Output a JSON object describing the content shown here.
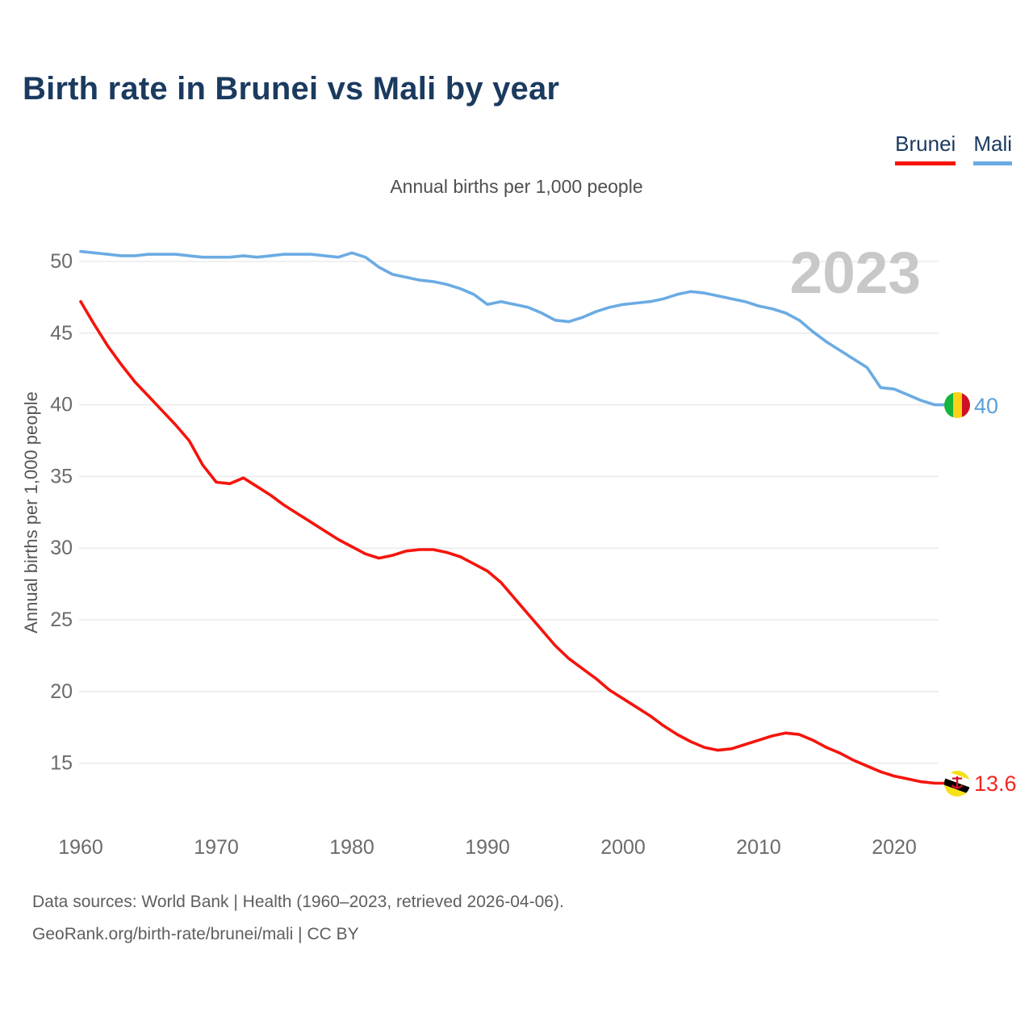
{
  "header": {
    "title": "Birth rate in Brunei vs Mali by year"
  },
  "legend": [
    {
      "label": "Brunei",
      "color": "#f5140c"
    },
    {
      "label": "Mali",
      "color": "#6babe3"
    }
  ],
  "subtitle": "Annual births per 1,000 people",
  "watermark": "2023",
  "end_labels": [
    {
      "series": "Mali",
      "value": "40",
      "color": "#5b9fd8",
      "flag": "mali-flag"
    },
    {
      "series": "Brunei",
      "value": "13.6",
      "color": "#f3261d",
      "flag": "brunei-flag"
    }
  ],
  "flag_colors": {
    "mali": {
      "green": "#14B53A",
      "yellow": "#FCD116",
      "red": "#CE1126"
    },
    "brunei": {
      "yellow": "#F7E017",
      "white": "#ffffff",
      "black": "#000000",
      "red": "#CF1126"
    }
  },
  "footer": {
    "line1": "Data sources: World Bank | Health (1960–2023, retrieved 2026-04-06).",
    "line2": "GeoRank.org/birth-rate/brunei/mali | CC BY"
  },
  "chart_data": {
    "type": "line",
    "title": "Birth rate in Brunei vs Mali by year",
    "subtitle": "Annual births per 1,000 people",
    "xlabel": "",
    "ylabel": "Annual births per 1,000 people",
    "xticks": [
      1960,
      1970,
      1980,
      1990,
      2000,
      2010,
      2020
    ],
    "yticks": [
      15,
      20,
      25,
      30,
      35,
      40,
      45,
      50
    ],
    "ylim": [
      12.5,
      52.5
    ],
    "xlim": [
      1960,
      2023
    ],
    "grid": true,
    "legend_position": "top-right",
    "x": [
      1960,
      1961,
      1962,
      1963,
      1964,
      1965,
      1966,
      1967,
      1968,
      1969,
      1970,
      1971,
      1972,
      1973,
      1974,
      1975,
      1976,
      1977,
      1978,
      1979,
      1980,
      1981,
      1982,
      1983,
      1984,
      1985,
      1986,
      1987,
      1988,
      1989,
      1990,
      1991,
      1992,
      1993,
      1994,
      1995,
      1996,
      1997,
      1998,
      1999,
      2000,
      2001,
      2002,
      2003,
      2004,
      2005,
      2006,
      2007,
      2008,
      2009,
      2010,
      2011,
      2012,
      2013,
      2014,
      2015,
      2016,
      2017,
      2018,
      2019,
      2020,
      2021,
      2022,
      2023
    ],
    "series": [
      {
        "name": "Mali",
        "color": "#6babe3",
        "end_value": 40,
        "values": [
          50.7,
          50.6,
          50.5,
          50.4,
          50.4,
          50.5,
          50.5,
          50.5,
          50.4,
          50.3,
          50.3,
          50.3,
          50.4,
          50.3,
          50.4,
          50.5,
          50.5,
          50.5,
          50.4,
          50.3,
          50.6,
          50.3,
          49.6,
          49.1,
          48.9,
          48.7,
          48.6,
          48.4,
          48.1,
          47.7,
          47.0,
          47.2,
          47.0,
          46.8,
          46.4,
          45.9,
          45.8,
          46.1,
          46.5,
          46.8,
          47.0,
          47.1,
          47.2,
          47.4,
          47.7,
          47.9,
          47.8,
          47.6,
          47.4,
          47.2,
          46.9,
          46.7,
          46.4,
          45.9,
          45.1,
          44.4,
          43.8,
          43.2,
          42.6,
          41.2,
          41.1,
          40.7,
          40.3,
          40.0
        ]
      },
      {
        "name": "Brunei",
        "color": "#f5140c",
        "end_value": 13.6,
        "values": [
          47.2,
          45.6,
          44.1,
          42.8,
          41.6,
          40.6,
          39.6,
          38.6,
          37.5,
          35.8,
          34.6,
          34.5,
          34.9,
          34.3,
          33.7,
          33.0,
          32.4,
          31.8,
          31.2,
          30.6,
          30.1,
          29.6,
          29.3,
          29.5,
          29.8,
          29.9,
          29.9,
          29.7,
          29.4,
          28.9,
          28.4,
          27.6,
          26.5,
          25.4,
          24.3,
          23.2,
          22.3,
          21.6,
          20.9,
          20.1,
          19.5,
          18.9,
          18.3,
          17.6,
          17.0,
          16.5,
          16.1,
          15.9,
          16.0,
          16.3,
          16.6,
          16.9,
          17.1,
          17.0,
          16.6,
          16.1,
          15.7,
          15.2,
          14.8,
          14.4,
          14.1,
          13.9,
          13.7,
          13.6
        ]
      }
    ]
  }
}
